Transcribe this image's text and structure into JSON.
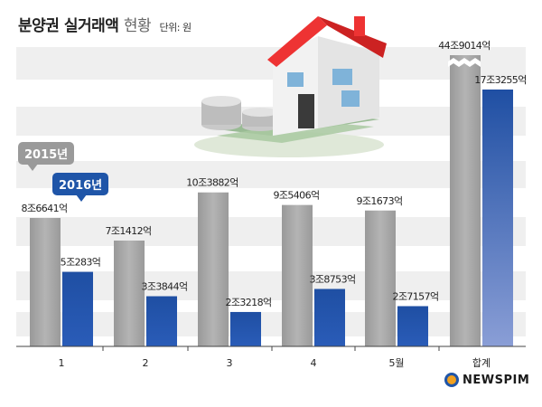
{
  "title": {
    "main": "분양권 실거래액",
    "sub": "현황",
    "unit": "단위: 원"
  },
  "legend": {
    "label_2015": "2015년",
    "label_2016": "2016년"
  },
  "logo": {
    "text": "NEWSPIM"
  },
  "colors": {
    "series_2015": "#a3a3a3",
    "series_2016": "#1f55a8",
    "stripe": "#efefef",
    "badge_2015": "#9a9a9a",
    "badge_2016": "#1f55a8"
  },
  "chart_data": {
    "type": "bar",
    "categories": [
      "1",
      "2",
      "3",
      "4",
      "5월",
      "합계"
    ],
    "series": [
      {
        "name": "2015년",
        "values": [
          86641,
          71412,
          103882,
          95406,
          91673,
          449014
        ],
        "labels": [
          "8조6641억",
          "7조1412억",
          "10조3882억",
          "9조5406억",
          "9조1673억",
          "44조9014억"
        ]
      },
      {
        "name": "2016년",
        "values": [
          50283,
          33844,
          23218,
          38753,
          27157,
          173255
        ],
        "labels": [
          "5조283억",
          "3조3844억",
          "2조3218억",
          "3조8753억",
          "2조7157억",
          "17조3255억"
        ]
      }
    ],
    "unit": "억 원",
    "axis_break": true,
    "ylabel": "",
    "xlabel": "",
    "grid": false
  }
}
